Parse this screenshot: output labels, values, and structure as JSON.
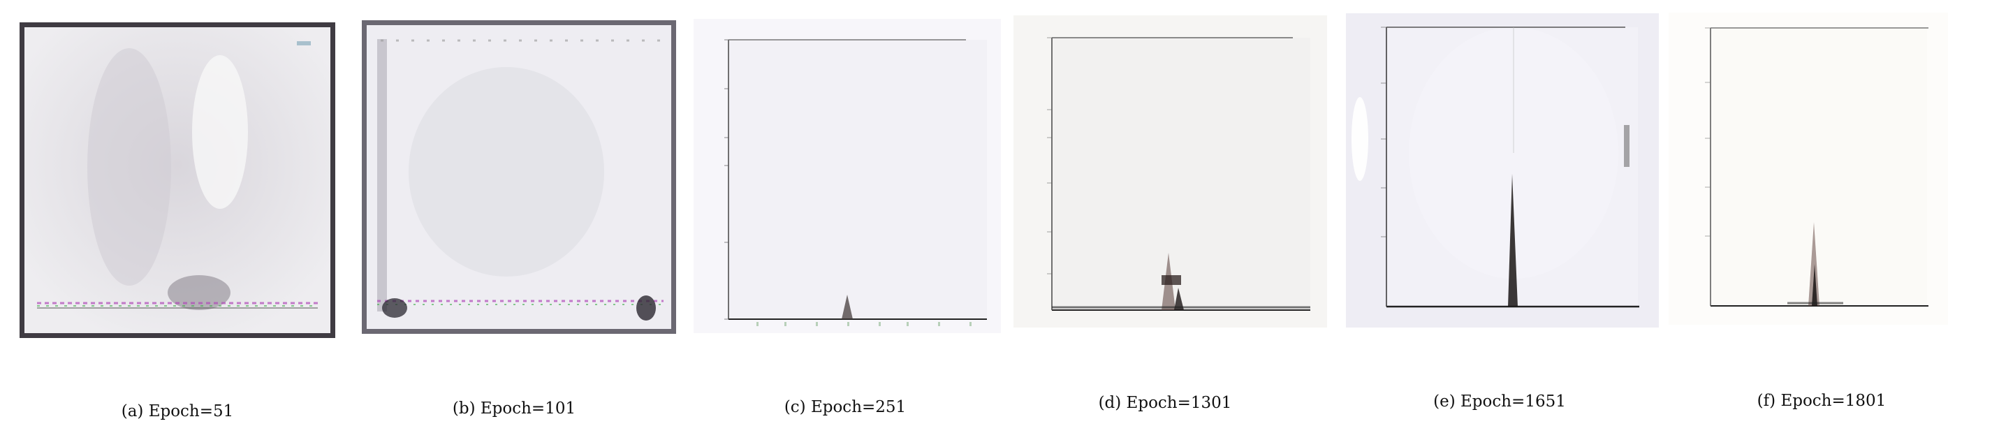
{
  "figure": {
    "subfigures": [
      {
        "caption": "(a) Epoch=51"
      },
      {
        "caption": "(b) Epoch=101"
      },
      {
        "caption": "(c) Epoch=251"
      },
      {
        "caption": "(d) Epoch=1301"
      },
      {
        "caption": "(e) Epoch=1651"
      },
      {
        "caption": "(f) Epoch=1801"
      }
    ]
  },
  "colors": {
    "frame_dark": "#3f3b42",
    "axis": "#222222",
    "spike": "#1a1515",
    "tick_magenta": "#b04ab8",
    "tick_green": "#3fae4a"
  }
}
